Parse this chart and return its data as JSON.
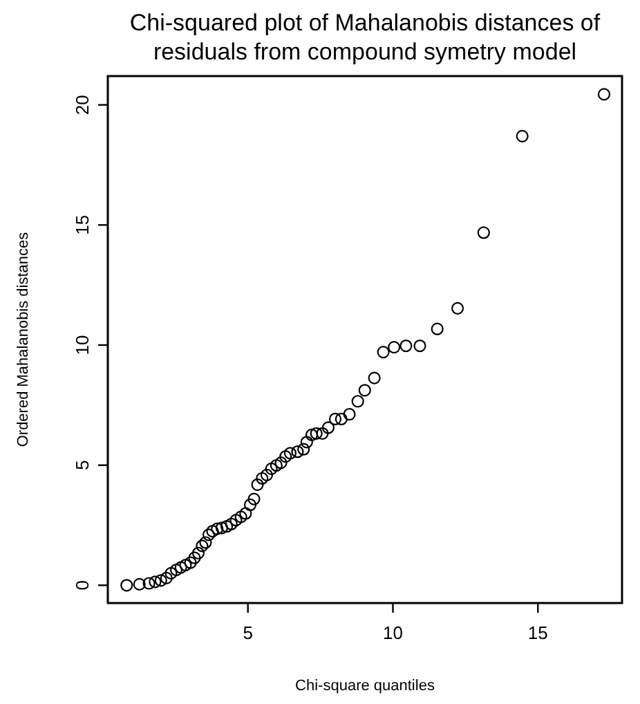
{
  "chart_data": {
    "type": "scatter",
    "title": "Chi-squared plot of Mahalanobis distances of\nresiduals from compound symetry model",
    "xlabel": "Chi-square quantiles",
    "ylabel": "Ordered Mahalanobis distances",
    "xlim": [
      0.17,
      17.9
    ],
    "ylim": [
      -0.74,
      21.2
    ],
    "xticks": [
      5,
      10,
      15
    ],
    "yticks": [
      0,
      5,
      10,
      15,
      20
    ],
    "grid": false,
    "marker": "circle",
    "series": [
      {
        "color": "#000000",
        "x": [
          0.82,
          1.26,
          1.59,
          1.8,
          2.0,
          2.19,
          2.35,
          2.53,
          2.69,
          2.85,
          3.02,
          3.16,
          3.29,
          3.42,
          3.54,
          3.65,
          3.78,
          3.94,
          4.1,
          4.27,
          4.43,
          4.59,
          4.76,
          4.92,
          5.08,
          5.21,
          5.33,
          5.49,
          5.65,
          5.81,
          5.98,
          6.14,
          6.3,
          6.46,
          6.71,
          6.92,
          7.03,
          7.2,
          7.36,
          7.57,
          7.77,
          8.01,
          8.22,
          8.5,
          8.79,
          9.03,
          9.36,
          9.67,
          10.04,
          10.45,
          10.93,
          11.53,
          12.23,
          13.13,
          14.46,
          17.28
        ],
        "values": [
          0,
          0.04,
          0.08,
          0.14,
          0.2,
          0.3,
          0.5,
          0.64,
          0.74,
          0.84,
          0.94,
          1.14,
          1.34,
          1.64,
          1.78,
          2.1,
          2.25,
          2.35,
          2.39,
          2.45,
          2.55,
          2.71,
          2.85,
          2.99,
          3.35,
          3.59,
          4.19,
          4.45,
          4.59,
          4.85,
          4.99,
          5.1,
          5.36,
          5.5,
          5.56,
          5.66,
          5.96,
          6.26,
          6.32,
          6.32,
          6.56,
          6.92,
          6.92,
          7.12,
          7.66,
          8.12,
          8.63,
          9.71,
          9.91,
          9.97,
          9.97,
          10.67,
          11.53,
          14.68,
          18.7,
          20.44
        ]
      }
    ]
  }
}
